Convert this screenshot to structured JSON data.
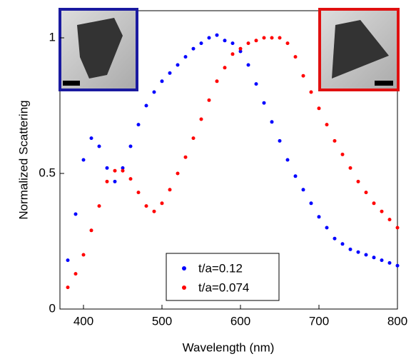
{
  "chart_data": {
    "type": "scatter",
    "x_label": "Wavelength (nm)",
    "y_label": "Normalized Scattering",
    "x": [
      380,
      390,
      400,
      410,
      420,
      430,
      440,
      450,
      460,
      470,
      480,
      490,
      500,
      510,
      520,
      530,
      540,
      550,
      560,
      570,
      580,
      590,
      600,
      610,
      620,
      630,
      640,
      650,
      660,
      670,
      680,
      690,
      700,
      710,
      720,
      730,
      740,
      750,
      760,
      770,
      780,
      790,
      800
    ],
    "series": [
      {
        "name": "t/a=0.12",
        "color": "#0000ff",
        "values": [
          0.18,
          0.35,
          0.55,
          0.63,
          0.6,
          0.52,
          0.47,
          0.52,
          0.6,
          0.68,
          0.75,
          0.8,
          0.84,
          0.87,
          0.9,
          0.93,
          0.96,
          0.98,
          1.0,
          1.01,
          0.99,
          0.98,
          0.95,
          0.9,
          0.83,
          0.76,
          0.69,
          0.62,
          0.55,
          0.49,
          0.44,
          0.39,
          0.34,
          0.3,
          0.26,
          0.24,
          0.22,
          0.21,
          0.2,
          0.19,
          0.18,
          0.17,
          0.16
        ]
      },
      {
        "name": "t/a=0.074",
        "color": "#ff0000",
        "values": [
          0.08,
          0.13,
          0.2,
          0.29,
          0.38,
          0.47,
          0.51,
          0.51,
          0.48,
          0.43,
          0.38,
          0.36,
          0.39,
          0.44,
          0.5,
          0.56,
          0.63,
          0.7,
          0.77,
          0.84,
          0.89,
          0.94,
          0.96,
          0.98,
          0.99,
          1.0,
          1.0,
          1.0,
          0.98,
          0.93,
          0.86,
          0.8,
          0.74,
          0.68,
          0.62,
          0.57,
          0.52,
          0.47,
          0.43,
          0.39,
          0.36,
          0.33,
          0.3
        ]
      }
    ],
    "xlim": [
      370,
      800
    ],
    "xticks": [
      400,
      500,
      600,
      700,
      800
    ],
    "ylim": [
      0,
      1.1
    ],
    "yticks": [
      0,
      0.5,
      1
    ]
  }
}
